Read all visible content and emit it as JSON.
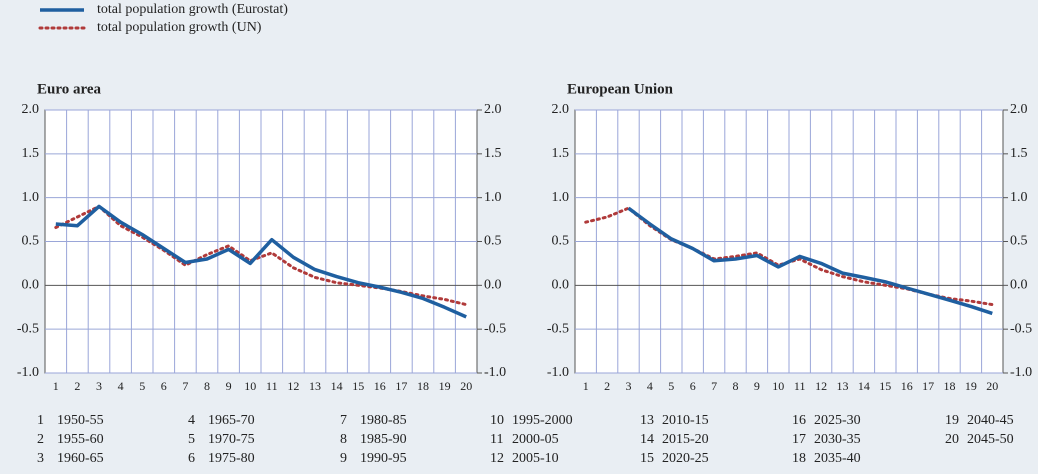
{
  "chart_data": [
    {
      "type": "line",
      "title": "Euro area",
      "categories": [
        "1",
        "2",
        "3",
        "4",
        "5",
        "6",
        "7",
        "8",
        "9",
        "10",
        "11",
        "12",
        "13",
        "14",
        "15",
        "16",
        "17",
        "18",
        "19",
        "20"
      ],
      "series": [
        {
          "name": "total population growth (Eurostat)",
          "color": "#1f5fa0",
          "style": "solid",
          "values": [
            0.7,
            0.68,
            0.9,
            0.72,
            0.58,
            0.42,
            0.26,
            0.3,
            0.41,
            0.25,
            0.52,
            0.32,
            0.18,
            0.1,
            0.03,
            -0.02,
            -0.08,
            -0.15,
            -0.25,
            -0.36
          ]
        },
        {
          "name": "total population growth (UN)",
          "color": "#b03a3a",
          "style": "dotted",
          "values": [
            0.66,
            0.78,
            0.9,
            0.68,
            0.55,
            0.4,
            0.23,
            0.35,
            0.45,
            0.28,
            0.37,
            0.2,
            0.09,
            0.03,
            0.0,
            -0.03,
            -0.07,
            -0.12,
            -0.16,
            -0.22
          ]
        }
      ],
      "ylim": [
        -1,
        2
      ],
      "yticks": [
        {
          "value": 2,
          "label": "2.0"
        },
        {
          "value": 1.5,
          "label": "1.5"
        },
        {
          "value": 1,
          "label": "1.0"
        },
        {
          "value": 0.5,
          "label": "0.5"
        },
        {
          "value": 0,
          "label": "0.0"
        },
        {
          "value": -0.5,
          "label": "-0.5"
        },
        {
          "value": -1,
          "label": "-1.0"
        }
      ],
      "grid": true
    },
    {
      "type": "line",
      "title": "European Union",
      "categories": [
        "1",
        "2",
        "3",
        "4",
        "5",
        "6",
        "7",
        "8",
        "9",
        "10",
        "11",
        "12",
        "13",
        "14",
        "15",
        "16",
        "17",
        "18",
        "19",
        "20"
      ],
      "series": [
        {
          "color": "#1f5fa0",
          "style": "solid",
          "values": [
            null,
            null,
            0.88,
            0.7,
            0.53,
            0.42,
            0.28,
            0.3,
            0.34,
            0.21,
            0.33,
            0.25,
            0.14,
            0.09,
            0.04,
            -0.03,
            -0.1,
            -0.17,
            -0.24,
            -0.32
          ]
        },
        {
          "color": "#b03a3a",
          "style": "dotted",
          "values": [
            0.72,
            0.78,
            0.88,
            0.68,
            0.52,
            0.42,
            0.3,
            0.33,
            0.37,
            0.23,
            0.3,
            0.18,
            0.1,
            0.04,
            0.0,
            -0.04,
            -0.1,
            -0.15,
            -0.18,
            -0.22
          ]
        }
      ],
      "ylim": [
        -1,
        2
      ],
      "yticks": [
        {
          "value": 2,
          "label": "2.0"
        },
        {
          "value": 1.5,
          "label": "1.5"
        },
        {
          "value": 1,
          "label": "1.0"
        },
        {
          "value": 0.5,
          "label": "0.5"
        },
        {
          "value": 0,
          "label": "0.0"
        },
        {
          "value": -0.5,
          "label": "-0.5"
        },
        {
          "value": -1,
          "label": "-1.0"
        }
      ],
      "grid": true
    }
  ],
  "key": [
    {
      "number": "1",
      "label": "1950-55"
    },
    {
      "number": "2",
      "label": "1955-60"
    },
    {
      "number": "3",
      "label": "1960-65"
    },
    {
      "number": "4",
      "label": "1965-70"
    },
    {
      "number": "5",
      "label": "1970-75"
    },
    {
      "number": "6",
      "label": "1975-80"
    },
    {
      "number": "7",
      "label": "1980-85"
    },
    {
      "number": "8",
      "label": "1985-90"
    },
    {
      "number": "9",
      "label": "1990-95"
    },
    {
      "number": "10",
      "label": "1995-2000"
    },
    {
      "number": "11",
      "label": "2000-05"
    },
    {
      "number": "12",
      "label": "2005-10"
    },
    {
      "number": "13",
      "label": "2010-15"
    },
    {
      "number": "14",
      "label": "2015-20"
    },
    {
      "number": "15",
      "label": "2020-25"
    },
    {
      "number": "16",
      "label": "2025-30"
    },
    {
      "number": "17",
      "label": "2030-35"
    },
    {
      "number": "18",
      "label": "2035-40"
    },
    {
      "number": "19",
      "label": "2040-45"
    },
    {
      "number": "20",
      "label": "2045-50"
    }
  ]
}
